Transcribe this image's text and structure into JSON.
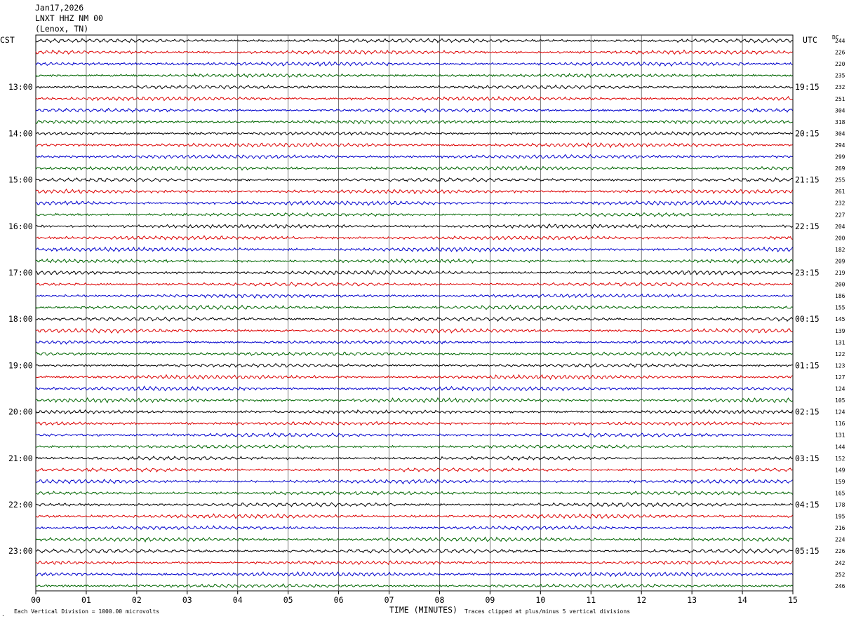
{
  "header": {
    "date": "Jan17,2026",
    "station": "LNXT HHZ NM 00",
    "location": "(Lenox, TN)"
  },
  "axis_labels": {
    "left": "CST",
    "right": "UTC",
    "dc": "DC"
  },
  "footer": {
    "xlabel": "TIME (MINUTES)",
    "scale_note": "Each Vertical Division = 1000.00 microvolts",
    "clip_note": "Traces clipped at plus/minus 5 vertical divisions",
    "corner_mark": "."
  },
  "chart_data": {
    "type": "line",
    "x_ticks": [
      "00",
      "01",
      "02",
      "03",
      "04",
      "05",
      "06",
      "07",
      "08",
      "09",
      "10",
      "11",
      "12",
      "13",
      "14",
      "15"
    ],
    "x_range": [
      0,
      15
    ],
    "grid": "vertical lines every minute",
    "series_colors": [
      "#000000",
      "#dd0000",
      "#0000cc",
      "#006600"
    ],
    "cst_hour_labels": [
      {
        "row": 4,
        "label": "13:00"
      },
      {
        "row": 8,
        "label": "14:00"
      },
      {
        "row": 12,
        "label": "15:00"
      },
      {
        "row": 16,
        "label": "16:00"
      },
      {
        "row": 20,
        "label": "17:00"
      },
      {
        "row": 24,
        "label": "18:00"
      },
      {
        "row": 28,
        "label": "19:00"
      },
      {
        "row": 32,
        "label": "20:00"
      },
      {
        "row": 36,
        "label": "21:00"
      },
      {
        "row": 40,
        "label": "22:00"
      },
      {
        "row": 44,
        "label": "23:00"
      }
    ],
    "utc_hour_labels": [
      {
        "row": 4,
        "label": "19:15"
      },
      {
        "row": 8,
        "label": "20:15"
      },
      {
        "row": 12,
        "label": "21:15"
      },
      {
        "row": 16,
        "label": "22:15"
      },
      {
        "row": 20,
        "label": "23:15"
      },
      {
        "row": 24,
        "label": "00:15"
      },
      {
        "row": 28,
        "label": "01:15"
      },
      {
        "row": 32,
        "label": "02:15"
      },
      {
        "row": 36,
        "label": "03:15"
      },
      {
        "row": 40,
        "label": "04:15"
      },
      {
        "row": 44,
        "label": "05:15"
      }
    ],
    "dc_offsets": [
      "244",
      "226",
      "220",
      "235",
      "232",
      "251",
      "304",
      "318",
      "304",
      "294",
      "299",
      "269",
      "255",
      "261",
      "232",
      "227",
      "204",
      "200",
      "182",
      "209",
      "219",
      "200",
      "186",
      "155",
      "145",
      "139",
      "131",
      "122",
      "123",
      "127",
      "124",
      "105",
      "124",
      "116",
      "131",
      "144",
      "152",
      "149",
      "159",
      "165",
      "178",
      "195",
      "216",
      "224",
      "226",
      "242",
      "252",
      "246"
    ]
  }
}
